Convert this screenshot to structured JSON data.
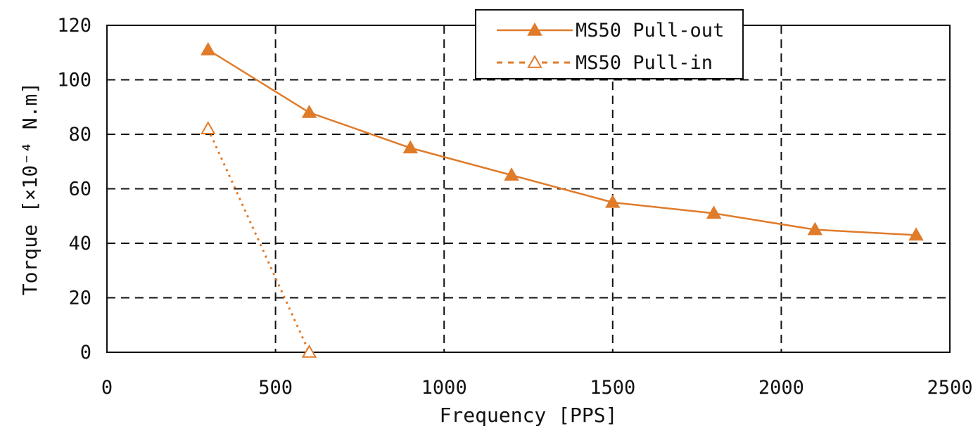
{
  "chart_data": {
    "type": "line",
    "xlabel": "Frequency [PPS]",
    "ylabel": "Torque [×10⁻⁴ N.m]",
    "xlim": [
      0,
      2500
    ],
    "ylim": [
      0,
      120
    ],
    "xticks": [
      0,
      500,
      1000,
      1500,
      2000,
      2500
    ],
    "yticks": [
      0,
      20,
      40,
      60,
      80,
      100,
      120
    ],
    "grid": "dashed",
    "legend_position": "top-center",
    "series": [
      {
        "name": "MS50 Pull-out",
        "style": "solid",
        "marker": "filled-triangle",
        "color": "#e07b2a",
        "x": [
          300,
          600,
          900,
          1200,
          1500,
          1800,
          2100,
          2400
        ],
        "y": [
          111,
          88,
          75,
          65,
          55,
          51,
          45,
          43
        ]
      },
      {
        "name": "MS50 Pull-in",
        "style": "dotted",
        "marker": "open-triangle",
        "color": "#e07b2a",
        "x": [
          300,
          600
        ],
        "y": [
          82,
          0
        ]
      }
    ]
  }
}
